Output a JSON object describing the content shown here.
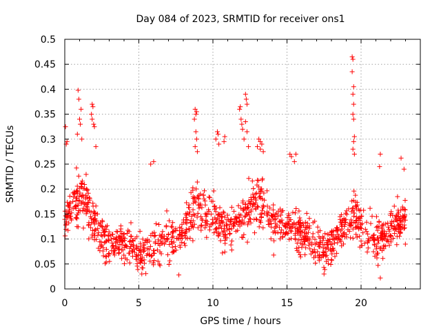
{
  "chart_data": {
    "type": "scatter",
    "title": "Day 084 of 2023, SRMTID for receiver ons1",
    "xlabel": "GPS time / hours",
    "ylabel": "SRMTID / TECUs",
    "xlim": [
      0,
      24
    ],
    "ylim": [
      0,
      0.5
    ],
    "grid": true,
    "marker": "+",
    "color": "#ff0000",
    "x_ticks": [
      0,
      5,
      10,
      15,
      20
    ],
    "x_tick_labels": [
      "0",
      "5",
      "10",
      "15",
      "20"
    ],
    "y_ticks": [
      0,
      0.05,
      0.1,
      0.15,
      0.2,
      0.25,
      0.3,
      0.35,
      0.4,
      0.45,
      0.5
    ],
    "y_tick_labels": [
      "0",
      "0.05",
      "0.1",
      "0.15",
      "0.2",
      "0.25",
      "0.3",
      "0.35",
      "0.4",
      "0.45",
      "0.5"
    ],
    "trend": {
      "x": [
        0,
        0.5,
        1.0,
        1.5,
        2.0,
        2.5,
        3.0,
        3.5,
        4.0,
        4.5,
        5.0,
        5.5,
        6.0,
        6.5,
        7.0,
        7.5,
        8.0,
        8.5,
        9.0,
        9.5,
        10.0,
        10.5,
        11.0,
        11.5,
        12.0,
        12.5,
        13.0,
        13.5,
        14.0,
        14.5,
        15.0,
        15.5,
        16.0,
        16.5,
        17.0,
        17.5,
        18.0,
        18.5,
        19.0,
        19.5,
        20.0,
        20.5,
        21.0,
        21.5,
        22.0,
        22.5,
        23.0
      ],
      "y": [
        0.14,
        0.16,
        0.19,
        0.17,
        0.13,
        0.11,
        0.1,
        0.095,
        0.09,
        0.085,
        0.075,
        0.08,
        0.09,
        0.095,
        0.1,
        0.095,
        0.11,
        0.15,
        0.17,
        0.16,
        0.14,
        0.13,
        0.12,
        0.13,
        0.15,
        0.16,
        0.18,
        0.16,
        0.14,
        0.13,
        0.12,
        0.12,
        0.11,
        0.1,
        0.08,
        0.08,
        0.09,
        0.11,
        0.13,
        0.15,
        0.12,
        0.11,
        0.1,
        0.1,
        0.12,
        0.13,
        0.14
      ]
    },
    "point_count": 1300,
    "spread_sd": 0.034,
    "outliers": [
      {
        "x": 0.05,
        "y": 0.325
      },
      {
        "x": 0.1,
        "y": 0.29
      },
      {
        "x": 0.15,
        "y": 0.295
      },
      {
        "x": 0.9,
        "y": 0.398
      },
      {
        "x": 0.95,
        "y": 0.38
      },
      {
        "x": 1.0,
        "y": 0.34
      },
      {
        "x": 1.05,
        "y": 0.33
      },
      {
        "x": 1.1,
        "y": 0.36
      },
      {
        "x": 0.85,
        "y": 0.31
      },
      {
        "x": 1.15,
        "y": 0.3
      },
      {
        "x": 1.85,
        "y": 0.37
      },
      {
        "x": 1.9,
        "y": 0.365
      },
      {
        "x": 1.85,
        "y": 0.34
      },
      {
        "x": 1.95,
        "y": 0.33
      },
      {
        "x": 1.8,
        "y": 0.35
      },
      {
        "x": 2.0,
        "y": 0.325
      },
      {
        "x": 2.1,
        "y": 0.285
      },
      {
        "x": 5.8,
        "y": 0.25
      },
      {
        "x": 6.0,
        "y": 0.255
      },
      {
        "x": 8.8,
        "y": 0.36
      },
      {
        "x": 8.85,
        "y": 0.35
      },
      {
        "x": 8.9,
        "y": 0.355
      },
      {
        "x": 8.75,
        "y": 0.34
      },
      {
        "x": 8.85,
        "y": 0.315
      },
      {
        "x": 8.9,
        "y": 0.3
      },
      {
        "x": 8.8,
        "y": 0.285
      },
      {
        "x": 8.95,
        "y": 0.275
      },
      {
        "x": 10.3,
        "y": 0.315
      },
      {
        "x": 10.35,
        "y": 0.31
      },
      {
        "x": 10.2,
        "y": 0.3
      },
      {
        "x": 10.4,
        "y": 0.29
      },
      {
        "x": 10.8,
        "y": 0.305
      },
      {
        "x": 10.75,
        "y": 0.295
      },
      {
        "x": 11.8,
        "y": 0.36
      },
      {
        "x": 11.85,
        "y": 0.365
      },
      {
        "x": 11.9,
        "y": 0.34
      },
      {
        "x": 12.0,
        "y": 0.32
      },
      {
        "x": 11.95,
        "y": 0.33
      },
      {
        "x": 12.1,
        "y": 0.3
      },
      {
        "x": 12.2,
        "y": 0.39
      },
      {
        "x": 12.25,
        "y": 0.38
      },
      {
        "x": 12.3,
        "y": 0.37
      },
      {
        "x": 12.2,
        "y": 0.335
      },
      {
        "x": 12.3,
        "y": 0.315
      },
      {
        "x": 12.4,
        "y": 0.285
      },
      {
        "x": 13.1,
        "y": 0.3
      },
      {
        "x": 13.2,
        "y": 0.295
      },
      {
        "x": 13.3,
        "y": 0.29
      },
      {
        "x": 13.0,
        "y": 0.285
      },
      {
        "x": 13.2,
        "y": 0.28
      },
      {
        "x": 13.4,
        "y": 0.275
      },
      {
        "x": 15.2,
        "y": 0.27
      },
      {
        "x": 15.3,
        "y": 0.265
      },
      {
        "x": 15.6,
        "y": 0.27
      },
      {
        "x": 15.5,
        "y": 0.255
      },
      {
        "x": 19.4,
        "y": 0.465
      },
      {
        "x": 19.45,
        "y": 0.46
      },
      {
        "x": 19.4,
        "y": 0.435
      },
      {
        "x": 19.5,
        "y": 0.405
      },
      {
        "x": 19.45,
        "y": 0.39
      },
      {
        "x": 19.5,
        "y": 0.37
      },
      {
        "x": 19.45,
        "y": 0.35
      },
      {
        "x": 19.5,
        "y": 0.34
      },
      {
        "x": 19.55,
        "y": 0.305
      },
      {
        "x": 19.5,
        "y": 0.295
      },
      {
        "x": 19.45,
        "y": 0.28
      },
      {
        "x": 19.55,
        "y": 0.27
      },
      {
        "x": 21.3,
        "y": 0.27
      },
      {
        "x": 21.25,
        "y": 0.245
      },
      {
        "x": 22.7,
        "y": 0.262
      },
      {
        "x": 22.9,
        "y": 0.24
      },
      {
        "x": 7.7,
        "y": 0.028
      },
      {
        "x": 21.3,
        "y": 0.022
      },
      {
        "x": 5.2,
        "y": 0.03
      },
      {
        "x": 17.5,
        "y": 0.03
      }
    ]
  }
}
